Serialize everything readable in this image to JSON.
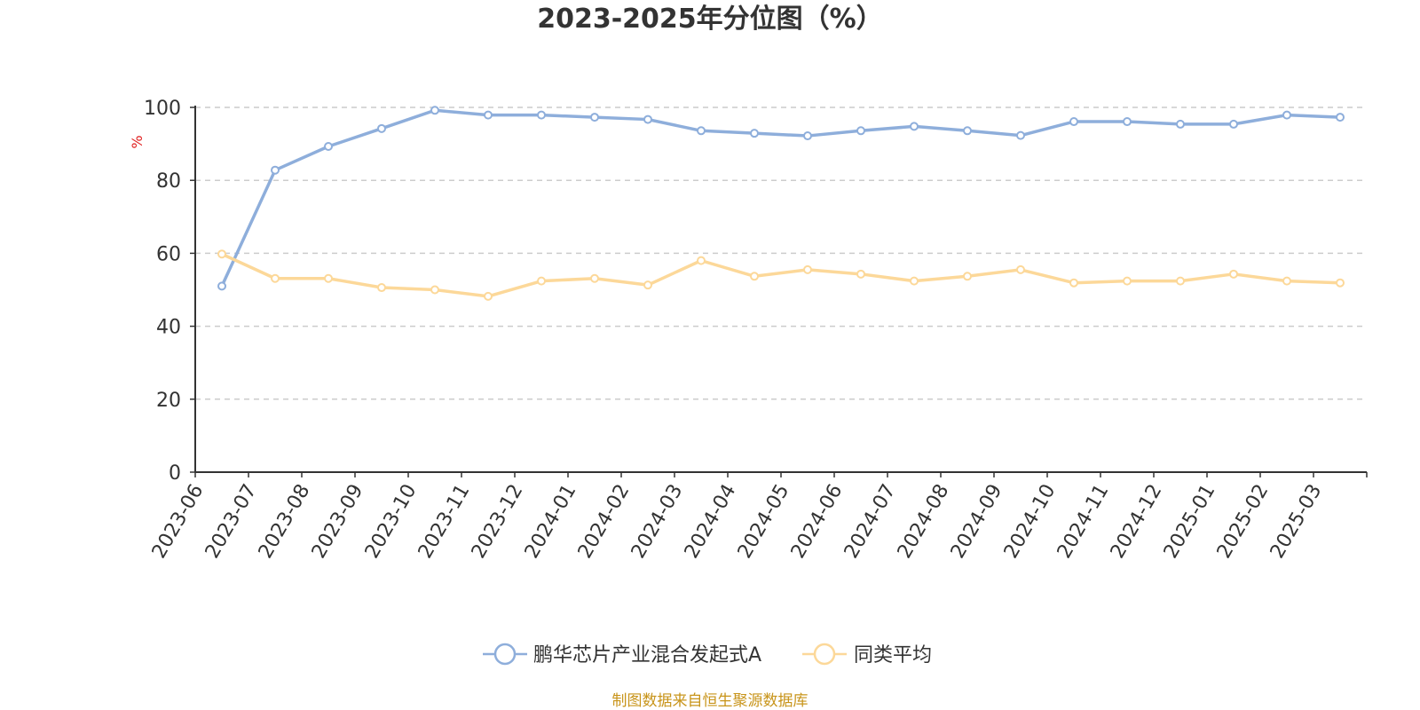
{
  "chart_data": {
    "type": "line",
    "title": "2023-2025年分位图（%）",
    "ylabel": "%",
    "ylim": [
      0,
      100
    ],
    "yticks": [
      0,
      20,
      40,
      60,
      80,
      100
    ],
    "grid": true,
    "legend_position": "bottom",
    "categories": [
      "2023-06",
      "2023-07",
      "2023-08",
      "2023-09",
      "2023-10",
      "2023-11",
      "2023-12",
      "2024-01",
      "2024-02",
      "2024-03",
      "2024-04",
      "2024-05",
      "2024-06",
      "2024-07",
      "2024-08",
      "2024-09",
      "2024-10",
      "2024-11",
      "2024-12",
      "2025-01",
      "2025-02",
      "2025-03"
    ],
    "series": [
      {
        "name": "鹏华芯片产业混合发起式A",
        "color": "#8eaedb",
        "values": [
          51,
          82.8,
          89.3,
          94.2,
          99.2,
          97.9,
          97.9,
          97.3,
          96.7,
          93.6,
          92.9,
          92.2,
          93.6,
          94.8,
          93.6,
          92.3,
          96.1,
          96.1,
          95.4,
          95.4,
          97.9,
          97.3
        ]
      },
      {
        "name": "同类平均",
        "color": "#fcd899",
        "values": [
          59.8,
          53.1,
          53.1,
          50.6,
          50,
          48.2,
          52.4,
          53.1,
          51.3,
          58,
          53.7,
          55.5,
          54.3,
          52.4,
          53.7,
          55.5,
          51.9,
          52.4,
          52.4,
          54.3,
          52.4,
          51.9
        ]
      }
    ]
  },
  "source_note": "制图数据来自恒生聚源数据库"
}
